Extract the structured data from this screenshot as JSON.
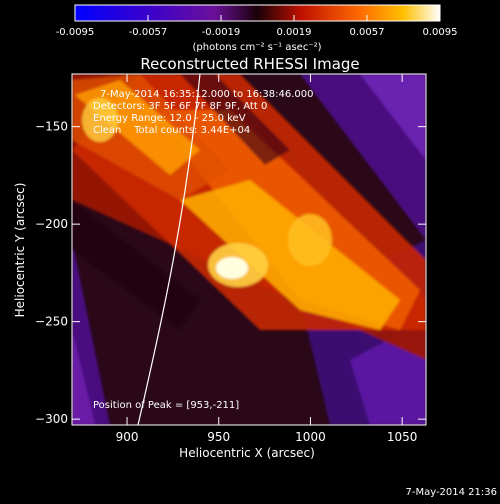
{
  "colorbar": {
    "ticks": [
      "-0.0095",
      "-0.0057",
      "-0.0019",
      "0.0019",
      "0.0057",
      "0.0095"
    ],
    "units_label": "(photons cm⁻² s⁻¹ asec⁻²)"
  },
  "image": {
    "title": "Reconstructed RHESSI Image",
    "info_lines": [
      "7-May-2014 16:35:12.000 to 16:38:46.000",
      "Detectors: 3F 5F 6F 7F 8F 9F, Att 0",
      "Energy Range: 12.0 - 25.0 keV",
      "Clean    Total counts: 3.44E+04"
    ],
    "peak_label": "Position of Peak = [953,-211]",
    "xlabel": "Heliocentric X (arcsec)",
    "ylabel": "Heliocentric Y (arcsec)",
    "x_ticks": [
      {
        "value": 900,
        "label": "900"
      },
      {
        "value": 950,
        "label": "950"
      },
      {
        "value": 1000,
        "label": "1000"
      },
      {
        "value": 1050,
        "label": "1050"
      }
    ],
    "y_ticks": [
      {
        "value": -150,
        "label": "−150"
      },
      {
        "value": -200,
        "label": "−200"
      },
      {
        "value": -250,
        "label": "−250"
      },
      {
        "value": -300,
        "label": "−300"
      }
    ],
    "xlim": [
      870,
      1063
    ],
    "ylim": [
      -303,
      -123
    ],
    "peak": [
      953,
      -211
    ]
  },
  "footer": {
    "timestamp": "7-May-2014 21:36"
  }
}
